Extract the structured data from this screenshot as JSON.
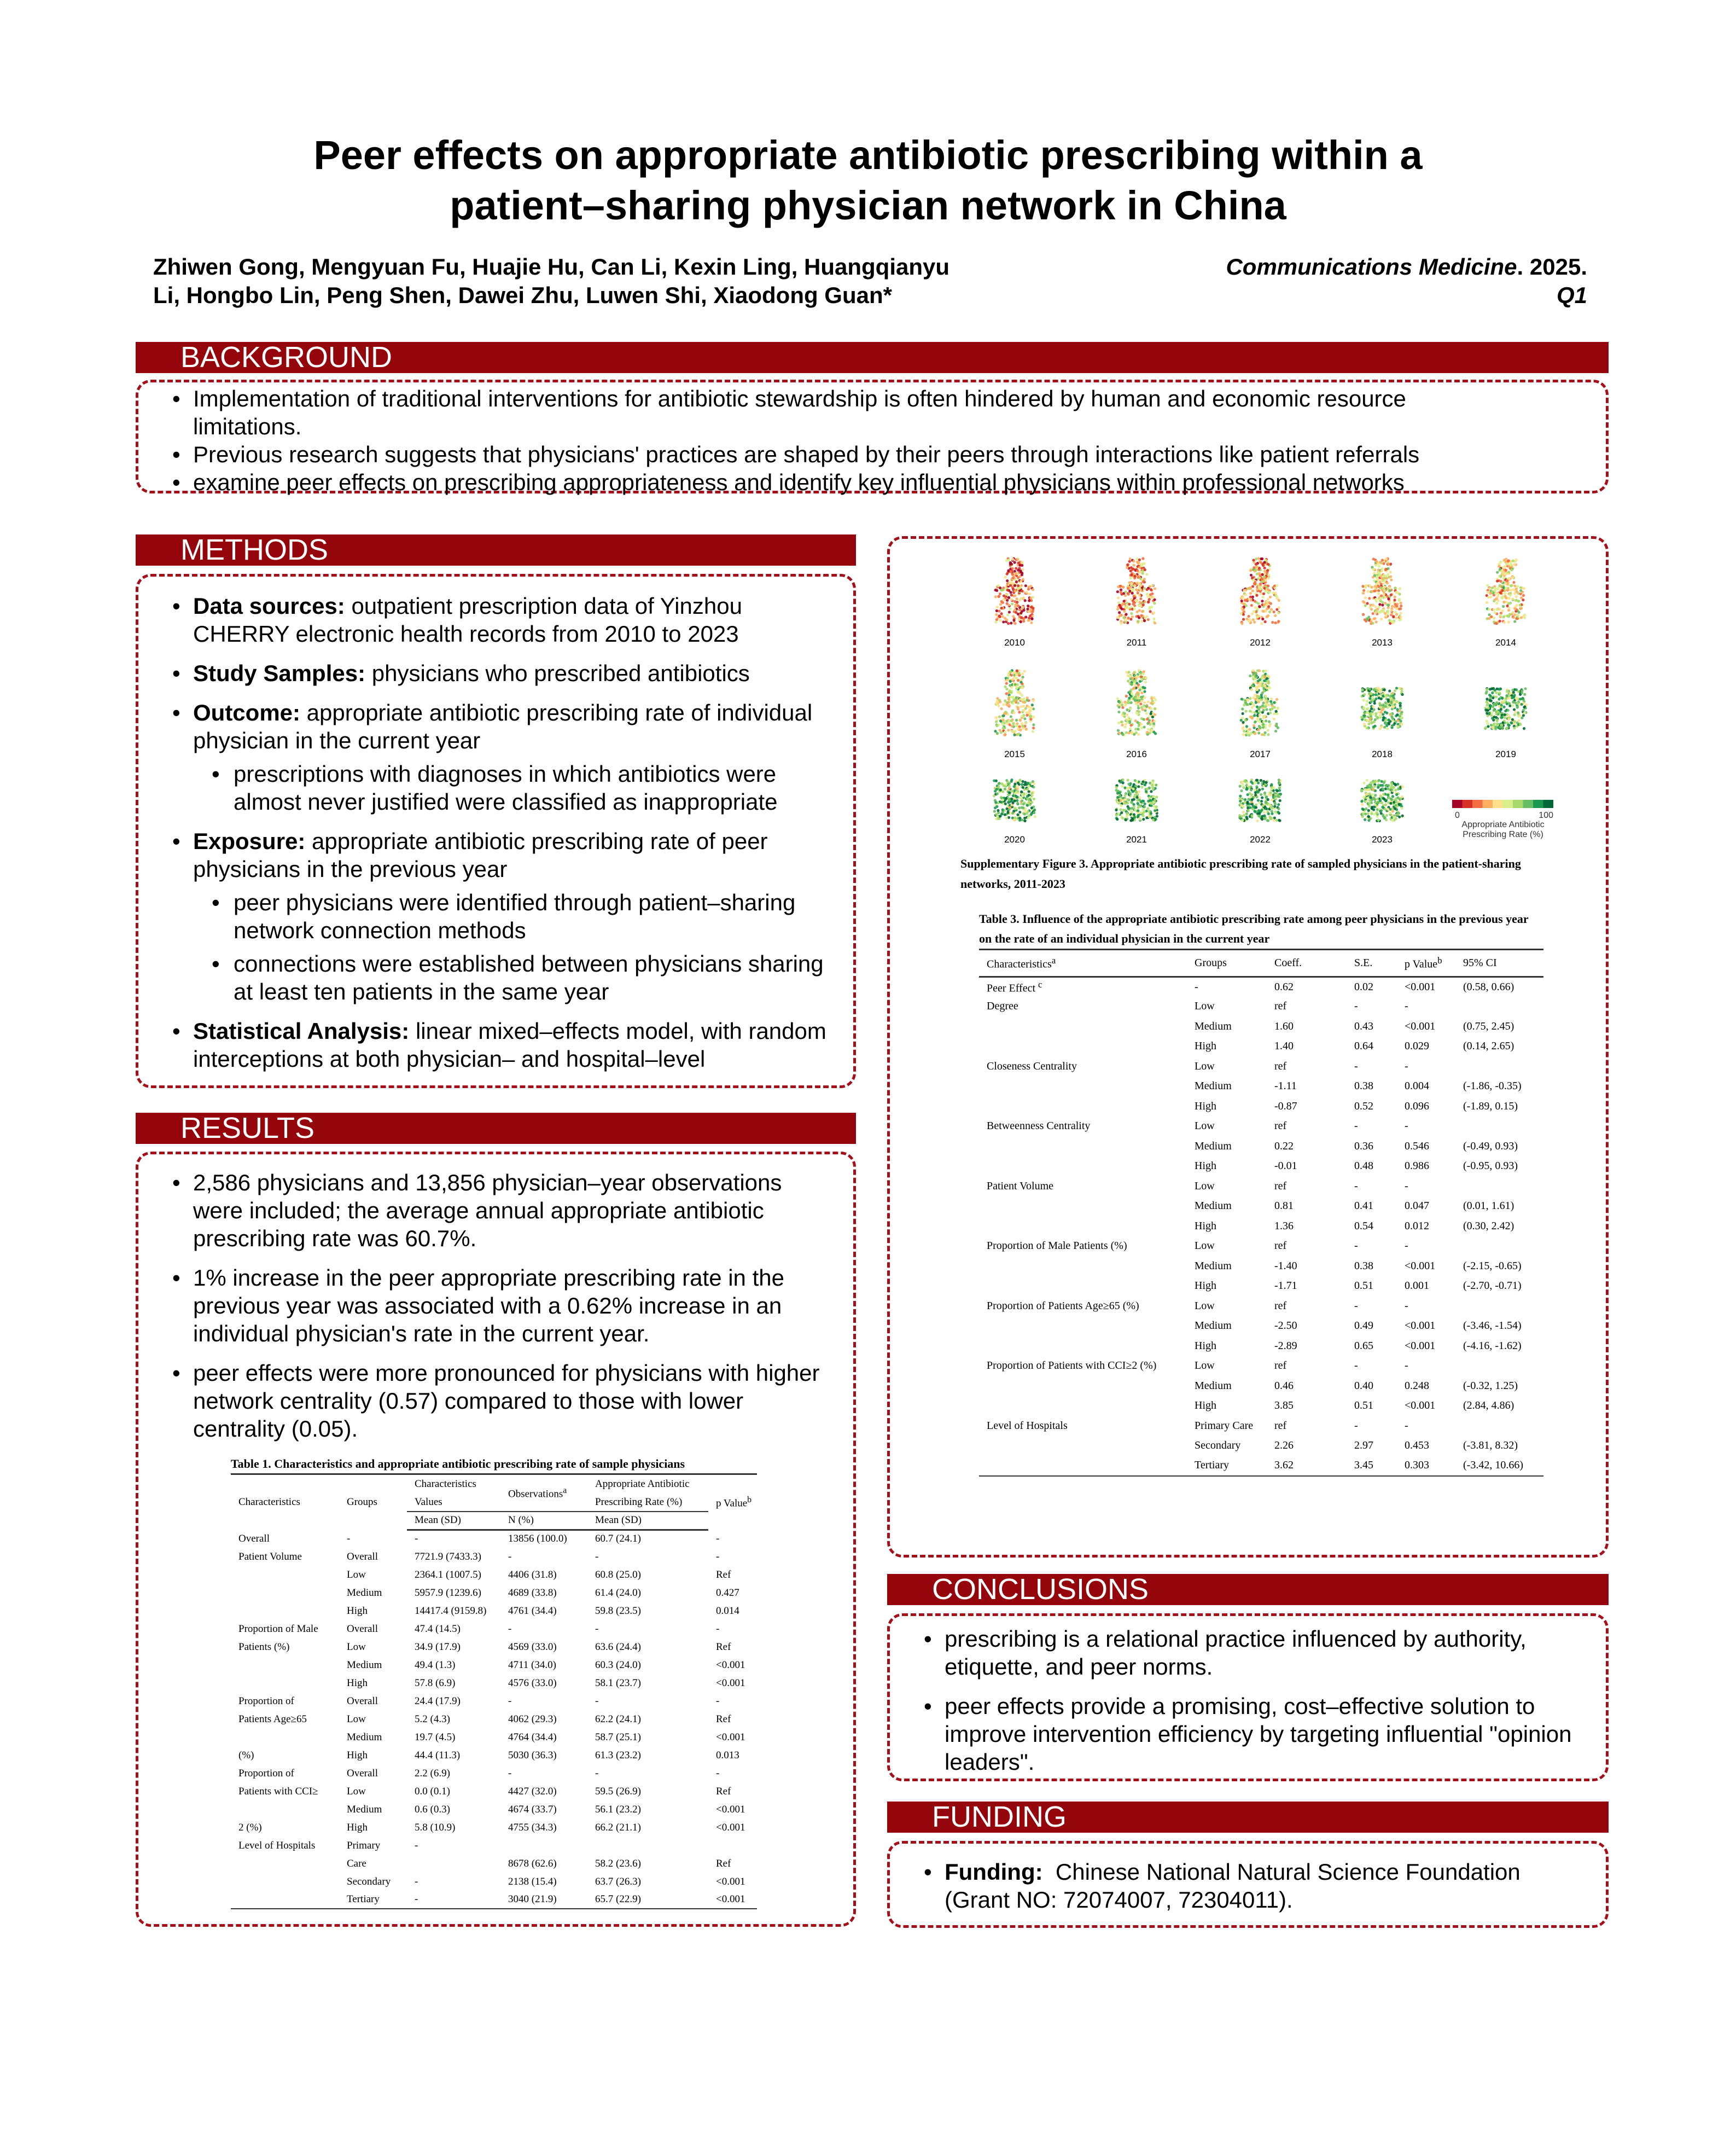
{
  "header": {
    "title_line1": "Peer effects on appropriate antibiotic prescribing within a",
    "title_line2": "patient–sharing physician network in China",
    "authors_line1": "Zhiwen Gong, Mengyuan Fu, Huajie Hu, Can Li, Kexin Ling, Huangqianyu",
    "authors_line2": "Li, Hongbo Lin, Peng Shen, Dawei Zhu, Luwen Shi, Xiaodong Guan*",
    "journal": "Communications Medicine",
    "year": ". 2025.",
    "quartile": "Q1"
  },
  "colors": {
    "section_bar": "#95050c",
    "dashed_border": "#a4101a"
  },
  "background": {
    "heading": "BACKGROUND",
    "items": [
      "Implementation of traditional interventions for antibiotic stewardship is often hindered by human and economic resource limitations.",
      "Previous research suggests that physicians' practices are shaped by their peers through interactions like patient referrals",
      "examine peer effects on prescribing appropriateness and identify key influential physicians within professional networks"
    ]
  },
  "methods": {
    "heading": "METHODS",
    "items": [
      {
        "lead": "Data sources:",
        "text": " outpatient prescription data of Yinzhou CHERRY electronic health records from 2010 to 2023",
        "sub": []
      },
      {
        "lead": "Study Samples:",
        "text": " physicians who prescribed antibiotics",
        "sub": []
      },
      {
        "lead": "Outcome:",
        "text": " appropriate antibiotic prescribing rate of individual physician in the current year",
        "sub": [
          "prescriptions with diagnoses in which antibiotics were almost never justified were classified as inappropriate"
        ]
      },
      {
        "lead": "Exposure:",
        "text": " appropriate antibiotic prescribing rate of peer physicians in the previous year",
        "sub": [
          "peer physicians were identified through patient–sharing network connection methods",
          "connections were established between physicians sharing at least ten patients in the same year"
        ]
      },
      {
        "lead": "Statistical Analysis:",
        "text": " linear mixed–effects model, with random interceptions at both physician– and hospital–level",
        "sub": []
      }
    ]
  },
  "results": {
    "heading": "RESULTS",
    "items": [
      "2,586 physicians and 13,856 physician–year observations were included; the average annual appropriate antibiotic prescribing rate was 60.7%.",
      "1% increase in the peer appropriate prescribing rate in the previous year was associated with a 0.62% increase in an individual physician's rate in the current year.",
      "peer effects were more pronounced for physicians with higher network centrality (0.57) compared to those with lower centrality (0.05)."
    ]
  },
  "table1": {
    "caption": "Table 1. Characteristics and appropriate antibiotic prescribing rate of sample physicians",
    "headers": {
      "characteristics": "Characteristics",
      "groups": "Groups",
      "values_top": "Characteristics Values",
      "observations": "Observations",
      "obs_sup": "a",
      "rate_top": "Appropriate Antibiotic Prescribing Rate (%)",
      "p": "p Value",
      "p_sup": "b",
      "mean_sd": "Mean (SD)",
      "n_pct": "N (%)",
      "rate_mean_sd": "Mean (SD)"
    },
    "rows": [
      [
        "Overall",
        "-",
        "-",
        "13856 (100.0)",
        "60.7 (24.1)",
        "-"
      ],
      [
        "Patient Volume",
        "Overall",
        "7721.9 (7433.3)",
        "-",
        "-",
        "-"
      ],
      [
        "",
        "Low",
        "2364.1 (1007.5)",
        "4406 (31.8)",
        "60.8 (25.0)",
        "Ref"
      ],
      [
        "",
        "Medium",
        "5957.9 (1239.6)",
        "4689 (33.8)",
        "61.4 (24.0)",
        "0.427"
      ],
      [
        "",
        "High",
        "14417.4 (9159.8)",
        "4761 (34.4)",
        "59.8 (23.5)",
        "0.014"
      ],
      [
        "Proportion of Male",
        "Overall",
        "47.4 (14.5)",
        "-",
        "-",
        "-"
      ],
      [
        "Patients (%)",
        "Low",
        "34.9 (17.9)",
        "4569 (33.0)",
        "63.6 (24.4)",
        "Ref"
      ],
      [
        "",
        "Medium",
        "49.4 (1.3)",
        "4711 (34.0)",
        "60.3 (24.0)",
        "<0.001"
      ],
      [
        "",
        "High",
        "57.8 (6.9)",
        "4576 (33.0)",
        "58.1 (23.7)",
        "<0.001"
      ],
      [
        "Proportion of",
        "Overall",
        "24.4 (17.9)",
        "-",
        "-",
        "-"
      ],
      [
        "Patients Age≥65",
        "Low",
        "5.2 (4.3)",
        "4062 (29.3)",
        "62.2 (24.1)",
        "Ref"
      ],
      [
        "",
        "Medium",
        "19.7 (4.5)",
        "4764 (34.4)",
        "58.7 (25.1)",
        "<0.001"
      ],
      [
        "(%)",
        "High",
        "44.4 (11.3)",
        "5030 (36.3)",
        "61.3 (23.2)",
        "0.013"
      ],
      [
        "Proportion of",
        "Overall",
        "2.2 (6.9)",
        "-",
        "-",
        "-"
      ],
      [
        "Patients with CCI≥",
        "Low",
        "0.0 (0.1)",
        "4427 (32.0)",
        "59.5 (26.9)",
        "Ref"
      ],
      [
        "",
        "Medium",
        "0.6 (0.3)",
        "4674 (33.7)",
        "56.1 (23.2)",
        "<0.001"
      ],
      [
        "2 (%)",
        "High",
        "5.8 (10.9)",
        "4755 (34.3)",
        "66.2 (21.1)",
        "<0.001"
      ],
      [
        "Level of Hospitals",
        "Primary",
        "-",
        "",
        "",
        ""
      ],
      [
        "",
        "Care",
        "",
        "8678 (62.6)",
        "58.2 (23.6)",
        "Ref"
      ],
      [
        "",
        "Secondary",
        "-",
        "2138 (15.4)",
        "63.7 (26.3)",
        "<0.001"
      ],
      [
        "",
        "Tertiary",
        "-",
        "3040 (21.9)",
        "65.7 (22.9)",
        "<0.001"
      ]
    ]
  },
  "figure": {
    "years": [
      "2010",
      "2011",
      "2012",
      "2013",
      "2014",
      "2015",
      "2016",
      "2017",
      "2018",
      "2019",
      "2020",
      "2021",
      "2022",
      "2023"
    ],
    "colorbar": {
      "min": "0",
      "max": "100",
      "label_line1": "Appropriate Antibiotic",
      "label_line2": "Prescribing Rate (%)",
      "colors": [
        "#a50026",
        "#d73027",
        "#f46d43",
        "#fdae61",
        "#fee08b",
        "#d9ef8b",
        "#a6d96a",
        "#66bd63",
        "#1a9850",
        "#006837"
      ]
    },
    "caption": "Supplementary Figure 3. Appropriate antibiotic prescribing rate of sampled physicians in the patient-sharing networks, 2011-2023"
  },
  "table3": {
    "caption": "Table 3. Influence of the appropriate antibiotic prescribing rate among peer physicians in the previous year on the rate of an individual physician in the current year",
    "headers": [
      "Characteristics",
      "Groups",
      "Coeff.",
      "S.E.",
      "p Value",
      "95% CI"
    ],
    "header_sups": [
      "a",
      "",
      "",
      "",
      "b",
      ""
    ],
    "rows": [
      [
        "Peer Effect",
        "-",
        "0.62",
        "0.02",
        "<0.001",
        "(0.58, 0.66)"
      ],
      [
        "Degree",
        "Low",
        "ref",
        "-",
        "-",
        ""
      ],
      [
        "",
        "Medium",
        "1.60",
        "0.43",
        "<0.001",
        "(0.75, 2.45)"
      ],
      [
        "",
        "High",
        "1.40",
        "0.64",
        "0.029",
        "(0.14, 2.65)"
      ],
      [
        "Closeness Centrality",
        "Low",
        "ref",
        "-",
        "-",
        ""
      ],
      [
        "",
        "Medium",
        "-1.11",
        "0.38",
        "0.004",
        "(-1.86, -0.35)"
      ],
      [
        "",
        "High",
        "-0.87",
        "0.52",
        "0.096",
        "(-1.89, 0.15)"
      ],
      [
        "Betweenness Centrality",
        "Low",
        "ref",
        "-",
        "-",
        ""
      ],
      [
        "",
        "Medium",
        "0.22",
        "0.36",
        "0.546",
        "(-0.49, 0.93)"
      ],
      [
        "",
        "High",
        "-0.01",
        "0.48",
        "0.986",
        "(-0.95, 0.93)"
      ],
      [
        "Patient Volume",
        "Low",
        "ref",
        "-",
        "-",
        ""
      ],
      [
        "",
        "Medium",
        "0.81",
        "0.41",
        "0.047",
        "(0.01, 1.61)"
      ],
      [
        "",
        "High",
        "1.36",
        "0.54",
        "0.012",
        "(0.30, 2.42)"
      ],
      [
        "Proportion of Male Patients (%)",
        "Low",
        "ref",
        "-",
        "-",
        ""
      ],
      [
        "",
        "Medium",
        "-1.40",
        "0.38",
        "<0.001",
        "(-2.15, -0.65)"
      ],
      [
        "",
        "High",
        "-1.71",
        "0.51",
        "0.001",
        "(-2.70, -0.71)"
      ],
      [
        "Proportion of Patients Age≥65 (%)",
        "Low",
        "ref",
        "-",
        "-",
        ""
      ],
      [
        "",
        "Medium",
        "-2.50",
        "0.49",
        "<0.001",
        "(-3.46, -1.54)"
      ],
      [
        "",
        "High",
        "-2.89",
        "0.65",
        "<0.001",
        "(-4.16, -1.62)"
      ],
      [
        "Proportion of Patients with CCI≥2 (%)",
        "Low",
        "ref",
        "-",
        "-",
        ""
      ],
      [
        "",
        "Medium",
        "0.46",
        "0.40",
        "0.248",
        "(-0.32, 1.25)"
      ],
      [
        "",
        "High",
        "3.85",
        "0.51",
        "<0.001",
        "(2.84, 4.86)"
      ],
      [
        "Level of Hospitals",
        "Primary Care",
        "ref",
        "-",
        "-",
        ""
      ],
      [
        "",
        "Secondary",
        "2.26",
        "2.97",
        "0.453",
        "(-3.81, 8.32)"
      ],
      [
        "",
        "Tertiary",
        "3.62",
        "3.45",
        "0.303",
        "(-3.42, 10.66)"
      ]
    ],
    "peer_effect_sup": "c"
  },
  "conclusions": {
    "heading": "CONCLUSIONS",
    "items": [
      "prescribing is a relational practice influenced by authority, etiquette, and peer norms.",
      "peer effects provide a promising, cost–effective solution to improve intervention efficiency by targeting influential \"opinion leaders\"."
    ]
  },
  "funding": {
    "heading": "FUNDING",
    "lead": "Funding:",
    "text": "  Chinese National Natural Science Foundation (Grant NO: 72074007, 72304011)."
  }
}
